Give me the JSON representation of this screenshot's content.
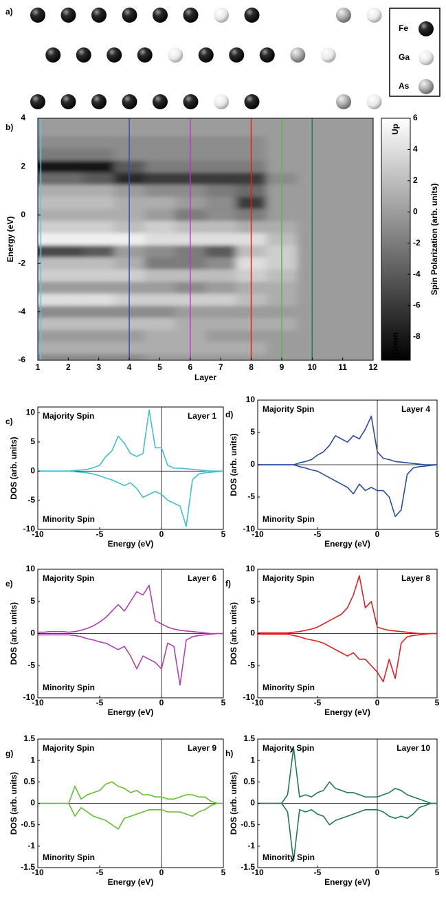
{
  "structure": {
    "label": "a)",
    "rows": [
      [
        "Fe",
        "Fe",
        "Fe",
        "Fe",
        "Fe",
        "Fe",
        "Ga",
        "Fe",
        null,
        null,
        "As",
        "Ga"
      ],
      [
        "Fe",
        "Fe",
        "Fe",
        "Fe",
        "Ga",
        "Fe",
        "Fe",
        "Fe",
        "As",
        "Ga"
      ],
      [
        "Fe",
        "Fe",
        "Fe",
        "Fe",
        "Fe",
        "Fe",
        "Ga",
        "Fe",
        null,
        null,
        "As",
        "Ga"
      ]
    ],
    "legend": [
      "Fe",
      "Ga",
      "As"
    ]
  },
  "chart_data": [
    {
      "type": "heatmap",
      "panel": "b)",
      "xlabel": "Layer",
      "ylabel": "Energy (eV)",
      "xlim": [
        1,
        12
      ],
      "ylim": [
        -6,
        4
      ],
      "xticks": [
        1,
        2,
        3,
        4,
        5,
        6,
        7,
        8,
        9,
        10,
        11,
        12
      ],
      "yticks": [
        -6,
        -4,
        -2,
        0,
        2,
        4
      ],
      "x": [
        1,
        2,
        3,
        4,
        5,
        6,
        7,
        8,
        9,
        10,
        11,
        12
      ],
      "y": [
        4,
        3.5,
        3,
        2.5,
        2,
        1.5,
        1,
        0.5,
        0,
        -0.5,
        -1,
        -1.5,
        -2,
        -2.5,
        -3,
        -3.5,
        -4,
        -4.5,
        -5,
        -5.5,
        -6
      ],
      "z": [
        [
          0,
          0,
          0,
          0,
          0,
          0,
          0,
          0,
          0,
          0,
          0,
          0
        ],
        [
          0,
          0,
          0,
          0,
          0,
          0,
          0,
          0,
          0,
          0,
          0,
          0
        ],
        [
          -1,
          -1,
          -1,
          -1,
          -1,
          -1,
          -1,
          -1,
          0,
          0,
          0,
          0
        ],
        [
          -2,
          -2,
          -2,
          -1,
          -1,
          -1,
          -1,
          -1,
          0,
          0,
          0,
          0
        ],
        [
          -8,
          -8,
          -8,
          -4,
          -2,
          -2,
          -2,
          -2,
          0,
          0,
          0,
          0
        ],
        [
          -3,
          -3,
          -4,
          -7,
          -6,
          -6,
          -6,
          -6,
          -1,
          0,
          0,
          0
        ],
        [
          1,
          1,
          1,
          0,
          -1,
          -1,
          -2,
          -3,
          0,
          0,
          0,
          0
        ],
        [
          2,
          2,
          2,
          1,
          1,
          0,
          -1,
          -6,
          0,
          0,
          0,
          0
        ],
        [
          1,
          1,
          1,
          1,
          0,
          -2,
          -1,
          -2,
          0,
          0,
          0,
          0
        ],
        [
          3,
          3,
          3,
          2,
          3,
          2,
          2,
          1,
          1,
          0,
          0,
          0
        ],
        [
          5,
          5,
          5,
          5,
          4,
          4,
          4,
          4,
          2,
          0,
          0,
          0
        ],
        [
          -5,
          -5,
          -4,
          0,
          -1,
          -2,
          -4,
          2,
          3,
          0,
          0,
          0
        ],
        [
          2,
          2,
          2,
          1,
          -2,
          -2,
          -1,
          4,
          3,
          0,
          0,
          0
        ],
        [
          3,
          3,
          3,
          3,
          2,
          2,
          2,
          3,
          2,
          0,
          0,
          0
        ],
        [
          0,
          0,
          0,
          0,
          0,
          -1,
          0,
          1,
          1,
          0,
          0,
          0
        ],
        [
          4,
          4,
          4,
          3,
          3,
          3,
          3,
          2,
          1,
          0,
          0,
          0
        ],
        [
          -1,
          -1,
          -1,
          -1,
          -1,
          0,
          0,
          0,
          0,
          0,
          0,
          0
        ],
        [
          2,
          2,
          2,
          2,
          2,
          1,
          1,
          1,
          1,
          0,
          0,
          0
        ],
        [
          0,
          0,
          0,
          0,
          1,
          1,
          0,
          0,
          0,
          0,
          0,
          0
        ],
        [
          1,
          1,
          1,
          1,
          1,
          1,
          1,
          1,
          0,
          0,
          0,
          0
        ],
        [
          -1,
          -1,
          -1,
          -1,
          0,
          0,
          0,
          0,
          0,
          0,
          0,
          0
        ]
      ],
      "colorbar": {
        "label": "Spin Polarization (arb. units)",
        "clim": [
          -9.5,
          6
        ],
        "ticks": [
          -8,
          -6,
          -4,
          -2,
          0,
          2,
          4,
          6
        ],
        "top_label": "Up",
        "bottom_label": "Down"
      },
      "layer_lines": [
        {
          "x": 1.1,
          "color": "#5bc8dc"
        },
        {
          "x": 4,
          "color": "#3050b0"
        },
        {
          "x": 6,
          "color": "#b040b0"
        },
        {
          "x": 8,
          "color": "#e02020"
        },
        {
          "x": 9,
          "color": "#50c040"
        },
        {
          "x": 10,
          "color": "#208050"
        }
      ]
    },
    {
      "type": "line",
      "panel": "c)",
      "upper_label": "Majority Spin",
      "lower_label": "Minority Spin",
      "layer_label": "Layer 1",
      "xlabel": "Energy (eV)",
      "ylabel": "DOS (arb. units)",
      "xlim": [
        -10,
        5
      ],
      "ylim": [
        -10,
        11
      ],
      "xticks": [
        -10,
        -5,
        0,
        5
      ],
      "yticks": [
        -10,
        -5,
        0,
        5,
        10
      ],
      "x": [
        -10,
        -9.5,
        -9,
        -8.5,
        -8,
        -7.5,
        -7,
        -6.5,
        -6,
        -5.5,
        -5,
        -4.5,
        -4,
        -3.5,
        -3,
        -2.5,
        -2,
        -1.5,
        -1,
        -0.5,
        0,
        0.5,
        1,
        1.5,
        2,
        2.5,
        3,
        3.5,
        4,
        4.5,
        5
      ],
      "series": [
        {
          "color": "#40bfd0",
          "values": [
            0,
            0,
            0,
            0,
            0,
            0,
            0.1,
            0.2,
            0.3,
            0.6,
            1,
            2.5,
            3.5,
            6,
            4.8,
            3,
            2.5,
            3,
            10.5,
            4,
            4,
            1,
            0.5,
            0.5,
            0.4,
            0.3,
            0.2,
            0.1,
            0,
            0,
            0
          ]
        },
        {
          "color": "#40bfd0",
          "values": [
            0,
            0,
            0,
            0,
            0,
            0,
            -0.1,
            -0.2,
            -0.3,
            -0.5,
            -0.8,
            -1.2,
            -1.5,
            -2,
            -2.5,
            -2,
            -3,
            -4.5,
            -4,
            -3.5,
            -4,
            -5,
            -5.5,
            -6,
            -9.5,
            -1.5,
            -0.5,
            -0.3,
            -0.2,
            -0.1,
            0
          ]
        }
      ]
    },
    {
      "type": "line",
      "panel": "d)",
      "upper_label": "Majority Spin",
      "lower_label": "Minority Spin",
      "layer_label": "Layer 4",
      "xlabel": "Energy (eV)",
      "ylabel": "DOS (arb. units)",
      "xlim": [
        -10,
        5
      ],
      "ylim": [
        -10,
        10
      ],
      "xticks": [
        -10,
        -5,
        0,
        5
      ],
      "yticks": [
        -10,
        -5,
        0,
        5,
        10
      ],
      "x": [
        -10,
        -9.5,
        -9,
        -8.5,
        -8,
        -7.5,
        -7,
        -6.5,
        -6,
        -5.5,
        -5,
        -4.5,
        -4,
        -3.5,
        -3,
        -2.5,
        -2,
        -1.5,
        -1,
        -0.5,
        0,
        0.5,
        1,
        1.5,
        2,
        2.5,
        3,
        3.5,
        4,
        4.5,
        5
      ],
      "series": [
        {
          "color": "#2a4aa0",
          "values": [
            0,
            0,
            0,
            0,
            0,
            0,
            0,
            0.3,
            0.5,
            0.8,
            1.5,
            2,
            3,
            4.5,
            4,
            3.5,
            4.5,
            4,
            5.5,
            7.5,
            2,
            1,
            0.8,
            0.5,
            0.4,
            0.3,
            0.2,
            0.1,
            0,
            0,
            0
          ]
        },
        {
          "color": "#2a4aa0",
          "values": [
            0,
            0,
            0,
            0,
            0,
            0,
            0,
            -0.3,
            -0.5,
            -0.8,
            -1,
            -1.5,
            -2,
            -2.5,
            -3,
            -3.5,
            -4.5,
            -3,
            -4,
            -3.5,
            -4,
            -4,
            -5,
            -8,
            -7,
            -1.5,
            -0.5,
            -0.3,
            -0.2,
            -0.1,
            0
          ]
        }
      ]
    },
    {
      "type": "line",
      "panel": "e)",
      "upper_label": "Majority Spin",
      "lower_label": "Minority Spin",
      "layer_label": "Layer 6",
      "xlabel": "Energy (eV)",
      "ylabel": "DOS (arb. units)",
      "xlim": [
        -10,
        5
      ],
      "ylim": [
        -10,
        10
      ],
      "xticks": [
        -10,
        -5,
        0,
        5
      ],
      "yticks": [
        -10,
        -5,
        0,
        5,
        10
      ],
      "x": [
        -10,
        -9.5,
        -9,
        -8.5,
        -8,
        -7.5,
        -7,
        -6.5,
        -6,
        -5.5,
        -5,
        -4.5,
        -4,
        -3.5,
        -3,
        -2.5,
        -2,
        -1.5,
        -1,
        -0.5,
        0,
        0.5,
        1,
        1.5,
        2,
        2.5,
        3,
        3.5,
        4,
        4.5,
        5
      ],
      "series": [
        {
          "color": "#b040b0",
          "values": [
            0.2,
            0.2,
            0.3,
            0.3,
            0.3,
            0.2,
            0.3,
            0.5,
            0.8,
            1.2,
            1.8,
            2.5,
            3.5,
            4.5,
            3.5,
            5,
            6.5,
            6,
            7.5,
            2,
            1.5,
            1,
            0.7,
            0.5,
            0.4,
            0.3,
            0.2,
            0.1,
            0,
            0,
            0
          ]
        },
        {
          "color": "#b040b0",
          "values": [
            -0.2,
            -0.2,
            -0.2,
            -0.2,
            -0.2,
            -0.2,
            -0.3,
            -0.5,
            -0.8,
            -1,
            -1.3,
            -1.5,
            -2,
            -2.5,
            -2,
            -3.5,
            -5.5,
            -3.5,
            -4,
            -4.5,
            -5.5,
            -1.5,
            -2,
            -8,
            -1,
            -0.5,
            -0.3,
            -0.2,
            -0.1,
            0,
            0
          ]
        }
      ]
    },
    {
      "type": "line",
      "panel": "f)",
      "upper_label": "Majority Spin",
      "lower_label": "Minority Spin",
      "layer_label": "Layer 8",
      "xlabel": "Energy (eV)",
      "ylabel": "DOS (arb. units)",
      "xlim": [
        -10,
        5
      ],
      "ylim": [
        -10,
        10
      ],
      "xticks": [
        -10,
        -5,
        0,
        5
      ],
      "yticks": [
        -10,
        -5,
        0,
        5,
        10
      ],
      "x": [
        -10,
        -9.5,
        -9,
        -8.5,
        -8,
        -7.5,
        -7,
        -6.5,
        -6,
        -5.5,
        -5,
        -4.5,
        -4,
        -3.5,
        -3,
        -2.5,
        -2,
        -1.5,
        -1,
        -0.5,
        0,
        0.5,
        1,
        1.5,
        2,
        2.5,
        3,
        3.5,
        4,
        4.5,
        5
      ],
      "series": [
        {
          "color": "#e02020",
          "values": [
            0.1,
            0.1,
            0.1,
            0.1,
            0.1,
            0.1,
            0.2,
            0.3,
            0.5,
            0.7,
            1,
            1.5,
            2,
            2.5,
            3,
            4,
            6,
            9,
            4,
            5,
            1,
            0.7,
            0.5,
            0.4,
            0.3,
            0.2,
            0.1,
            0,
            0,
            0,
            0
          ]
        },
        {
          "color": "#e02020",
          "values": [
            -0.1,
            -0.1,
            -0.1,
            -0.1,
            -0.1,
            -0.1,
            -0.3,
            -0.5,
            -0.8,
            -1,
            -1.2,
            -1.5,
            -2,
            -2.5,
            -3,
            -3.5,
            -3,
            -4,
            -4,
            -5,
            -6,
            -7.5,
            -4,
            -7,
            -1.5,
            -0.5,
            -0.3,
            -0.2,
            -0.1,
            0,
            0
          ]
        }
      ]
    },
    {
      "type": "line",
      "panel": "g)",
      "upper_label": "Majority Spin",
      "lower_label": "Minority Spin",
      "layer_label": "Layer 9",
      "xlabel": "Energy (eV)",
      "ylabel": "DOS (arb. units)",
      "xlim": [
        -10,
        5
      ],
      "ylim": [
        -1.5,
        1.5
      ],
      "xticks": [
        -10,
        -5,
        0,
        5
      ],
      "yticks": [
        -1.5,
        -1,
        -0.5,
        0,
        0.5,
        1,
        1.5
      ],
      "x": [
        -10,
        -9.5,
        -9,
        -8.5,
        -8,
        -7.5,
        -7,
        -6.5,
        -6,
        -5.5,
        -5,
        -4.5,
        -4,
        -3.5,
        -3,
        -2.5,
        -2,
        -1.5,
        -1,
        -0.5,
        0,
        0.5,
        1,
        1.5,
        2,
        2.5,
        3,
        3.5,
        4,
        4.5,
        5
      ],
      "series": [
        {
          "color": "#60c030",
          "values": [
            0,
            0,
            0,
            0,
            0,
            0,
            0.4,
            0.1,
            0.2,
            0.25,
            0.3,
            0.45,
            0.5,
            0.4,
            0.35,
            0.25,
            0.3,
            0.2,
            0.2,
            0.15,
            0.15,
            0.1,
            0.1,
            0.15,
            0.2,
            0.2,
            0.15,
            0.15,
            0.05,
            0,
            0
          ]
        },
        {
          "color": "#60c030",
          "values": [
            0,
            0,
            0,
            0,
            0,
            0,
            -0.3,
            -0.1,
            -0.2,
            -0.3,
            -0.35,
            -0.4,
            -0.5,
            -0.6,
            -0.35,
            -0.3,
            -0.25,
            -0.2,
            -0.15,
            -0.15,
            -0.15,
            -0.2,
            -0.2,
            -0.2,
            -0.25,
            -0.3,
            -0.2,
            -0.15,
            -0.05,
            0,
            0
          ]
        }
      ]
    },
    {
      "type": "line",
      "panel": "h)",
      "upper_label": "Majority Spin",
      "lower_label": "Minority Spin",
      "layer_label": "Layer 10",
      "xlabel": "Energy (eV)",
      "ylabel": "DOS (arb. units)",
      "xlim": [
        -10,
        5
      ],
      "ylim": [
        -1.5,
        1.5
      ],
      "xticks": [
        -10,
        -5,
        0,
        5
      ],
      "yticks": [
        -1.5,
        -1,
        -0.5,
        0,
        0.5,
        1,
        1.5
      ],
      "x": [
        -10,
        -9.5,
        -9,
        -8.5,
        -8,
        -7.5,
        -7,
        -6.5,
        -6,
        -5.5,
        -5,
        -4.5,
        -4,
        -3.5,
        -3,
        -2.5,
        -2,
        -1.5,
        -1,
        -0.5,
        0,
        0.5,
        1,
        1.5,
        2,
        2.5,
        3,
        3.5,
        4,
        4.5,
        5
      ],
      "series": [
        {
          "color": "#207a50",
          "values": [
            0,
            0,
            0,
            0,
            0,
            0.2,
            1.3,
            0.15,
            0.2,
            0.15,
            0.25,
            0.3,
            0.5,
            0.35,
            0.3,
            0.25,
            0.25,
            0.2,
            0.15,
            0.15,
            0.15,
            0.2,
            0.25,
            0.35,
            0.3,
            0.2,
            0.15,
            0.1,
            0.05,
            0,
            0
          ]
        },
        {
          "color": "#207a50",
          "values": [
            0,
            0,
            0,
            0,
            0,
            -0.2,
            -1.35,
            -0.15,
            -0.2,
            -0.15,
            -0.25,
            -0.3,
            -0.5,
            -0.4,
            -0.35,
            -0.3,
            -0.25,
            -0.2,
            -0.15,
            -0.15,
            -0.15,
            -0.2,
            -0.3,
            -0.35,
            -0.3,
            -0.35,
            -0.25,
            -0.1,
            -0.05,
            0,
            0
          ]
        }
      ]
    }
  ]
}
